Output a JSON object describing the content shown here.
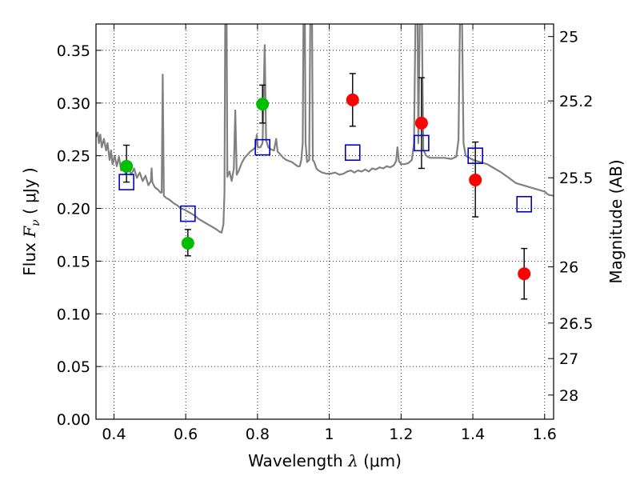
{
  "chart_data": {
    "type": "scatter",
    "title": "",
    "xlabel": {
      "prefix": "Wavelength  ",
      "symbol": "λ",
      "unit": " (μm)"
    },
    "ylabel": {
      "prefix": "Flux  ",
      "symbol": "F",
      "sub": "ν",
      "unit": "  ( μJy )"
    },
    "y2label": "Magnitude (AB)",
    "xlim": [
      0.35,
      1.625
    ],
    "ylim": [
      0.0,
      0.375
    ],
    "grid": true,
    "x_ticks": [
      {
        "v": 0.4,
        "label": "0.4"
      },
      {
        "v": 0.6,
        "label": "0.6"
      },
      {
        "v": 0.8,
        "label": "0.8"
      },
      {
        "v": 1.0,
        "label": "1"
      },
      {
        "v": 1.2,
        "label": "1.2"
      },
      {
        "v": 1.4,
        "label": "1.4"
      },
      {
        "v": 1.6,
        "label": "1.6"
      }
    ],
    "y_ticks": [
      {
        "v": 0.0,
        "label": "0.00"
      },
      {
        "v": 0.05,
        "label": "0.05"
      },
      {
        "v": 0.1,
        "label": "0.10"
      },
      {
        "v": 0.15,
        "label": "0.15"
      },
      {
        "v": 0.2,
        "label": "0.20"
      },
      {
        "v": 0.25,
        "label": "0.25"
      },
      {
        "v": 0.3,
        "label": "0.30"
      },
      {
        "v": 0.35,
        "label": "0.35"
      }
    ],
    "y2_ticks": [
      {
        "mag": 25,
        "label": "25"
      },
      {
        "mag": 25.2,
        "label": "25.2"
      },
      {
        "mag": 25.5,
        "label": "25.5"
      },
      {
        "mag": 26,
        "label": "26"
      },
      {
        "mag": 26.5,
        "label": "26.5"
      },
      {
        "mag": 27,
        "label": "27"
      },
      {
        "mag": 28,
        "label": "28"
      }
    ],
    "colors": {
      "green": "#00bf00",
      "red": "#ff0000",
      "blue": "#0000cc",
      "spectrum": "#808080",
      "errorbar": "#000000"
    },
    "series": [
      {
        "marker": "circle",
        "color": "green",
        "points": [
          {
            "x": 0.435,
            "y": 0.24,
            "lo": 0.225,
            "hi": 0.26
          },
          {
            "x": 0.606,
            "y": 0.167,
            "lo": 0.155,
            "hi": 0.18
          },
          {
            "x": 0.814,
            "y": 0.299,
            "lo": 0.281,
            "hi": 0.317
          }
        ]
      },
      {
        "marker": "circle",
        "color": "red",
        "points": [
          {
            "x": 1.065,
            "y": 0.303,
            "lo": 0.278,
            "hi": 0.328
          },
          {
            "x": 1.257,
            "y": 0.281,
            "lo": 0.238,
            "hi": 0.324
          },
          {
            "x": 1.407,
            "y": 0.227,
            "lo": 0.192,
            "hi": 0.263
          },
          {
            "x": 1.543,
            "y": 0.138,
            "lo": 0.114,
            "hi": 0.162
          }
        ]
      },
      {
        "marker": "square",
        "color": "blue",
        "points": [
          {
            "x": 0.435,
            "y": 0.225
          },
          {
            "x": 0.606,
            "y": 0.195
          },
          {
            "x": 0.814,
            "y": 0.258
          },
          {
            "x": 1.065,
            "y": 0.253
          },
          {
            "x": 1.257,
            "y": 0.262
          },
          {
            "x": 1.407,
            "y": 0.25
          },
          {
            "x": 1.543,
            "y": 0.204
          }
        ]
      }
    ],
    "spectrum": [
      [
        0.35,
        0.268
      ],
      [
        0.355,
        0.272
      ],
      [
        0.358,
        0.262
      ],
      [
        0.362,
        0.27
      ],
      [
        0.366,
        0.258
      ],
      [
        0.372,
        0.266
      ],
      [
        0.378,
        0.255
      ],
      [
        0.382,
        0.262
      ],
      [
        0.388,
        0.246
      ],
      [
        0.392,
        0.255
      ],
      [
        0.396,
        0.242
      ],
      [
        0.402,
        0.25
      ],
      [
        0.408,
        0.24
      ],
      [
        0.414,
        0.249
      ],
      [
        0.42,
        0.236
      ],
      [
        0.426,
        0.244
      ],
      [
        0.432,
        0.233
      ],
      [
        0.44,
        0.24
      ],
      [
        0.448,
        0.232
      ],
      [
        0.456,
        0.238
      ],
      [
        0.464,
        0.229
      ],
      [
        0.472,
        0.234
      ],
      [
        0.48,
        0.226
      ],
      [
        0.488,
        0.231
      ],
      [
        0.496,
        0.222
      ],
      [
        0.503,
        0.226
      ],
      [
        0.505,
        0.238
      ],
      [
        0.507,
        0.225
      ],
      [
        0.514,
        0.22
      ],
      [
        0.522,
        0.218
      ],
      [
        0.53,
        0.215
      ],
      [
        0.533,
        0.215
      ],
      [
        0.536,
        0.327
      ],
      [
        0.539,
        0.212
      ],
      [
        0.546,
        0.21
      ],
      [
        0.556,
        0.208
      ],
      [
        0.566,
        0.205
      ],
      [
        0.576,
        0.203
      ],
      [
        0.586,
        0.2
      ],
      [
        0.596,
        0.199
      ],
      [
        0.606,
        0.197
      ],
      [
        0.616,
        0.195
      ],
      [
        0.626,
        0.193
      ],
      [
        0.636,
        0.19
      ],
      [
        0.646,
        0.188
      ],
      [
        0.656,
        0.186
      ],
      [
        0.666,
        0.184
      ],
      [
        0.676,
        0.182
      ],
      [
        0.686,
        0.18
      ],
      [
        0.694,
        0.178
      ],
      [
        0.7,
        0.177
      ],
      [
        0.705,
        0.185
      ],
      [
        0.708,
        0.215
      ],
      [
        0.71,
        0.375
      ],
      [
        0.714,
        0.375
      ],
      [
        0.716,
        0.23
      ],
      [
        0.722,
        0.235
      ],
      [
        0.728,
        0.226
      ],
      [
        0.734,
        0.238
      ],
      [
        0.738,
        0.293
      ],
      [
        0.742,
        0.232
      ],
      [
        0.748,
        0.236
      ],
      [
        0.756,
        0.243
      ],
      [
        0.764,
        0.248
      ],
      [
        0.772,
        0.251
      ],
      [
        0.78,
        0.254
      ],
      [
        0.788,
        0.256
      ],
      [
        0.794,
        0.258
      ],
      [
        0.798,
        0.27
      ],
      [
        0.801,
        0.258
      ],
      [
        0.808,
        0.258
      ],
      [
        0.814,
        0.262
      ],
      [
        0.82,
        0.355
      ],
      [
        0.824,
        0.265
      ],
      [
        0.83,
        0.258
      ],
      [
        0.838,
        0.256
      ],
      [
        0.846,
        0.255
      ],
      [
        0.852,
        0.266
      ],
      [
        0.856,
        0.254
      ],
      [
        0.864,
        0.251
      ],
      [
        0.872,
        0.248
      ],
      [
        0.88,
        0.246
      ],
      [
        0.888,
        0.245
      ],
      [
        0.896,
        0.244
      ],
      [
        0.904,
        0.242
      ],
      [
        0.912,
        0.24
      ],
      [
        0.918,
        0.24
      ],
      [
        0.922,
        0.246
      ],
      [
        0.926,
        0.262
      ],
      [
        0.928,
        0.375
      ],
      [
        0.932,
        0.375
      ],
      [
        0.934,
        0.262
      ],
      [
        0.938,
        0.244
      ],
      [
        0.944,
        0.246
      ],
      [
        0.947,
        0.375
      ],
      [
        0.952,
        0.375
      ],
      [
        0.954,
        0.246
      ],
      [
        0.958,
        0.244
      ],
      [
        0.964,
        0.238
      ],
      [
        0.97,
        0.236
      ],
      [
        0.98,
        0.234
      ],
      [
        0.992,
        0.233
      ],
      [
        1.004,
        0.233
      ],
      [
        1.016,
        0.234
      ],
      [
        1.028,
        0.232
      ],
      [
        1.04,
        0.233
      ],
      [
        1.05,
        0.235
      ],
      [
        1.06,
        0.236
      ],
      [
        1.07,
        0.234
      ],
      [
        1.08,
        0.236
      ],
      [
        1.09,
        0.235
      ],
      [
        1.1,
        0.237
      ],
      [
        1.11,
        0.235
      ],
      [
        1.12,
        0.238
      ],
      [
        1.13,
        0.237
      ],
      [
        1.14,
        0.239
      ],
      [
        1.15,
        0.238
      ],
      [
        1.16,
        0.24
      ],
      [
        1.17,
        0.239
      ],
      [
        1.18,
        0.241
      ],
      [
        1.186,
        0.245
      ],
      [
        1.19,
        0.258
      ],
      [
        1.194,
        0.245
      ],
      [
        1.2,
        0.242
      ],
      [
        1.21,
        0.242
      ],
      [
        1.22,
        0.243
      ],
      [
        1.23,
        0.246
      ],
      [
        1.236,
        0.262
      ],
      [
        1.24,
        0.375
      ],
      [
        1.246,
        0.375
      ],
      [
        1.248,
        0.262
      ],
      [
        1.252,
        0.375
      ],
      [
        1.258,
        0.375
      ],
      [
        1.262,
        0.256
      ],
      [
        1.27,
        0.25
      ],
      [
        1.28,
        0.248
      ],
      [
        1.3,
        0.248
      ],
      [
        1.32,
        0.248
      ],
      [
        1.34,
        0.247
      ],
      [
        1.354,
        0.249
      ],
      [
        1.36,
        0.265
      ],
      [
        1.364,
        0.375
      ],
      [
        1.37,
        0.375
      ],
      [
        1.374,
        0.262
      ],
      [
        1.38,
        0.25
      ],
      [
        1.4,
        0.246
      ],
      [
        1.42,
        0.244
      ],
      [
        1.44,
        0.242
      ],
      [
        1.46,
        0.238
      ],
      [
        1.48,
        0.234
      ],
      [
        1.5,
        0.229
      ],
      [
        1.52,
        0.224
      ],
      [
        1.54,
        0.222
      ],
      [
        1.56,
        0.22
      ],
      [
        1.58,
        0.218
      ],
      [
        1.6,
        0.216
      ],
      [
        1.61,
        0.213
      ],
      [
        1.625,
        0.212
      ]
    ]
  }
}
